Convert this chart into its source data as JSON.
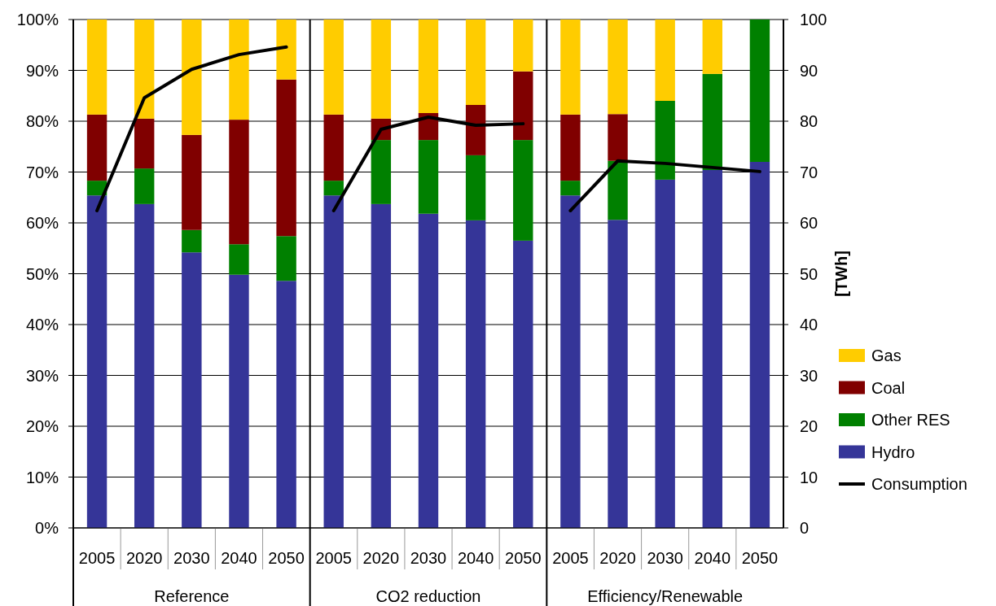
{
  "chart_data": {
    "type": "bar",
    "stacked": true,
    "categories": [
      "2005",
      "2020",
      "2030",
      "2040",
      "2050",
      "2005",
      "2020",
      "2030",
      "2040",
      "2050",
      "2005",
      "2020",
      "2030",
      "2040",
      "2050"
    ],
    "annotations": [
      "Reference",
      "CO2 reduction",
      "Efficiency/Renewable"
    ],
    "series": [
      {
        "name": "Hydro",
        "color": "#353598",
        "values": [
          65.4,
          63.7,
          54.2,
          49.8,
          48.6,
          65.4,
          63.7,
          61.8,
          60.5,
          56.5,
          65.4,
          60.6,
          68.5,
          70.4,
          72
        ]
      },
      {
        "name": "Other RES",
        "color": "#008000",
        "values": [
          2.9,
          7.0,
          4.4,
          6.0,
          8.8,
          2.9,
          12.6,
          14.5,
          12.8,
          19.8,
          2.9,
          11.6,
          15.5,
          18.9,
          28
        ]
      },
      {
        "name": "Coal",
        "color": "#800000",
        "values": [
          13,
          9.8,
          18.7,
          24.5,
          30.8,
          13,
          4.2,
          5.3,
          9.9,
          13.5,
          13,
          9.2,
          0,
          0,
          0
        ]
      },
      {
        "name": "Gas",
        "color": "#ffcc00",
        "values": [
          18.7,
          19.5,
          22.7,
          19.7,
          11.8,
          18.7,
          19.5,
          18.4,
          16.8,
          10.2,
          18.7,
          18.6,
          16.0,
          10.7,
          0
        ]
      },
      {
        "name": "Consumption",
        "type": "line",
        "axis": "y2",
        "color": "#000000",
        "values": [
          62.4,
          84.6,
          90.2,
          93.1,
          94.6,
          62.4,
          78.4,
          80.8,
          79.2,
          79.5,
          62.4,
          72.2,
          71.7,
          70.9,
          70.1
        ]
      }
    ],
    "ylim": [
      0,
      100
    ],
    "yticks": [
      {
        "value": 0,
        "label": "0%"
      },
      {
        "value": 10,
        "label": "10%"
      },
      {
        "value": 20,
        "label": "20%"
      },
      {
        "value": 30,
        "label": "30%"
      },
      {
        "value": 40,
        "label": "40%"
      },
      {
        "value": 50,
        "label": "50%"
      },
      {
        "value": 60,
        "label": "60%"
      },
      {
        "value": 70,
        "label": "70%"
      },
      {
        "value": 80,
        "label": "80%"
      },
      {
        "value": 90,
        "label": "90%"
      },
      {
        "value": 100,
        "label": "100%"
      }
    ],
    "y2lim": [
      0,
      100
    ],
    "y2ticks": [
      0,
      10,
      20,
      30,
      40,
      50,
      60,
      70,
      80,
      90,
      100
    ],
    "y2label": "[TWh]",
    "grid": "y",
    "legend": "right"
  }
}
